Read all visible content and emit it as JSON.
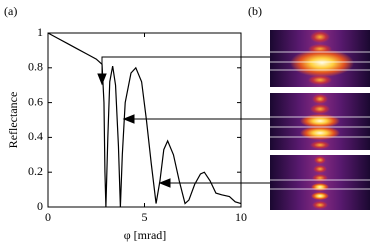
{
  "chart_data": {
    "type": "line",
    "panel_labels": [
      "(a)",
      "(b)"
    ],
    "xlabel": "φ [mrad]",
    "ylabel": "Reflectance",
    "xlim": [
      0,
      10
    ],
    "ylim": [
      0,
      1
    ],
    "xticks": [
      0,
      5,
      10
    ],
    "yticks": [
      0,
      0.2,
      0.4,
      0.6,
      0.8,
      1
    ],
    "series": [
      {
        "color": "#000000",
        "x": [
          0,
          0.5,
          1,
          1.5,
          2,
          2.5,
          2.8,
          2.9,
          2.95,
          3.0,
          3.1,
          3.2,
          3.35,
          3.5,
          3.65,
          3.75,
          3.85,
          4.0,
          4.3,
          4.55,
          4.85,
          5.1,
          5.35,
          5.6,
          5.8,
          6.0,
          6.2,
          6.5,
          6.8,
          7.1,
          7.3,
          7.6,
          7.9,
          8.1,
          8.4,
          8.7,
          9.0,
          9.4,
          9.7,
          10
        ],
        "values": [
          1,
          0.97,
          0.94,
          0.91,
          0.88,
          0.85,
          0.82,
          0.6,
          0.2,
          0,
          0.4,
          0.72,
          0.81,
          0.7,
          0.35,
          0,
          0.3,
          0.6,
          0.77,
          0.8,
          0.72,
          0.5,
          0.25,
          0.02,
          0.15,
          0.33,
          0.38,
          0.3,
          0.15,
          0.02,
          0.04,
          0.13,
          0.19,
          0.2,
          0.15,
          0.08,
          0.07,
          0.06,
          0.03,
          0.02
        ]
      }
    ]
  }
}
